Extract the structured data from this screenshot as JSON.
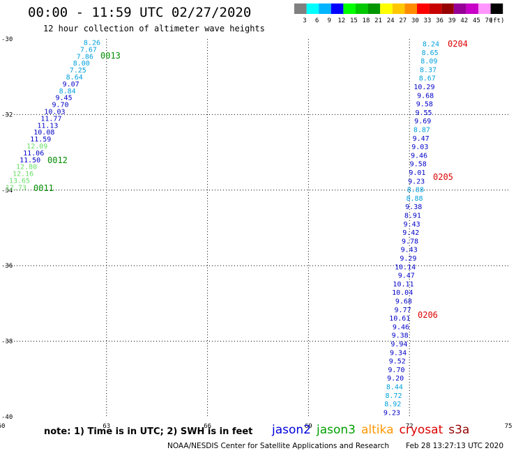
{
  "header": {
    "title": "00:00 - 11:59 UTC 02/27/2020",
    "subtitle": "12 hour collection of altimeter wave heights"
  },
  "colorbar": {
    "colors": [
      "#808080",
      "#00ffff",
      "#00b4ff",
      "#0000ff",
      "#00ff00",
      "#00c800",
      "#009600",
      "#ffff00",
      "#ffc800",
      "#ff8c00",
      "#ff0000",
      "#c80000",
      "#960000",
      "#960096",
      "#c800c8",
      "#ff96ff",
      "#000000"
    ],
    "labels": [
      "3",
      "6",
      "9",
      "12",
      "15",
      "18",
      "21",
      "24",
      "27",
      "30",
      "33",
      "36",
      "39",
      "42",
      "45",
      "70",
      "(ft)"
    ]
  },
  "map": {
    "lon_range": [
      60,
      75
    ],
    "lat_range": [
      -40,
      -30
    ],
    "x_ticks": [
      "60",
      "63",
      "66",
      "69",
      "72",
      "75"
    ],
    "y_ticks": [
      "-30",
      "-32",
      "-34",
      "-36",
      "-38",
      "-40"
    ]
  },
  "tracks": [
    {
      "satellite": "jason3",
      "points": [
        {
          "v": "8.26",
          "c": "#00a0dc"
        },
        {
          "v": "7.67",
          "c": "#00a0dc"
        },
        {
          "v": "7.86",
          "c": "#00a0dc"
        },
        {
          "v": "8.00",
          "c": "#00a0dc"
        },
        {
          "v": "7.25",
          "c": "#00a0dc"
        },
        {
          "v": "8.64",
          "c": "#00a0dc"
        },
        {
          "v": "9.07",
          "c": "#0000c8"
        },
        {
          "v": "8.84",
          "c": "#00a0dc"
        },
        {
          "v": "9.45",
          "c": "#0000c8"
        },
        {
          "v": "9.70",
          "c": "#0000c8"
        },
        {
          "v": "10.03",
          "c": "#0000c8"
        },
        {
          "v": "11.77",
          "c": "#0000c8"
        },
        {
          "v": "11.13",
          "c": "#0000c8"
        },
        {
          "v": "10.08",
          "c": "#0000c8"
        },
        {
          "v": "11.59",
          "c": "#0000c8"
        },
        {
          "v": "12.09",
          "c": "#66dd66"
        },
        {
          "v": "11.06",
          "c": "#0000c8"
        },
        {
          "v": "11.50",
          "c": "#0000c8"
        },
        {
          "v": "12.80",
          "c": "#66dd66"
        },
        {
          "v": "12.16",
          "c": "#66dd66"
        },
        {
          "v": "13.65",
          "c": "#66dd66"
        },
        {
          "v": "12.73",
          "c": "#66dd66"
        }
      ],
      "times": [
        {
          "t": "0013",
          "c": "#008c00"
        },
        {
          "t": "0012",
          "c": "#008c00"
        },
        {
          "t": "0011",
          "c": "#008c00"
        }
      ]
    },
    {
      "satellite": "s3a",
      "points": [
        {
          "v": "8.24",
          "c": "#00a0dc"
        },
        {
          "v": "8.65",
          "c": "#00a0dc"
        },
        {
          "v": "8.09",
          "c": "#00a0dc"
        },
        {
          "v": "8.37",
          "c": "#00a0dc"
        },
        {
          "v": "8.67",
          "c": "#00a0dc"
        },
        {
          "v": "10.29",
          "c": "#0000c8"
        },
        {
          "v": "9.68",
          "c": "#0000c8"
        },
        {
          "v": "9.58",
          "c": "#0000c8"
        },
        {
          "v": "9.55",
          "c": "#0000c8"
        },
        {
          "v": "9.69",
          "c": "#0000c8"
        },
        {
          "v": "8.87",
          "c": "#00a0dc"
        },
        {
          "v": "9.47",
          "c": "#0000c8"
        },
        {
          "v": "9.03",
          "c": "#0000c8"
        },
        {
          "v": "9.46",
          "c": "#0000c8"
        },
        {
          "v": "9.58",
          "c": "#0000c8"
        },
        {
          "v": "9.01",
          "c": "#0000c8"
        },
        {
          "v": "9.23",
          "c": "#0000c8"
        },
        {
          "v": "8.88",
          "c": "#00a0dc"
        },
        {
          "v": "8.88",
          "c": "#00a0dc"
        },
        {
          "v": "9.38",
          "c": "#0000c8"
        },
        {
          "v": "8.91",
          "c": "#0000c8"
        },
        {
          "v": "9.43",
          "c": "#0000c8"
        },
        {
          "v": "9.42",
          "c": "#0000c8"
        },
        {
          "v": "9.78",
          "c": "#0000c8"
        },
        {
          "v": "9.43",
          "c": "#0000c8"
        },
        {
          "v": "9.29",
          "c": "#0000c8"
        },
        {
          "v": "10.14",
          "c": "#0000c8"
        },
        {
          "v": "9.47",
          "c": "#0000c8"
        },
        {
          "v": "10.11",
          "c": "#0000c8"
        },
        {
          "v": "10.04",
          "c": "#0000c8"
        },
        {
          "v": "9.68",
          "c": "#0000c8"
        },
        {
          "v": "9.77",
          "c": "#0000c8"
        },
        {
          "v": "10.61",
          "c": "#0000c8"
        },
        {
          "v": "9.46",
          "c": "#0000c8"
        },
        {
          "v": "9.38",
          "c": "#0000c8"
        },
        {
          "v": "9.94",
          "c": "#0000c8"
        },
        {
          "v": "9.34",
          "c": "#0000c8"
        },
        {
          "v": "9.52",
          "c": "#0000c8"
        },
        {
          "v": "9.70",
          "c": "#0000c8"
        },
        {
          "v": "9.20",
          "c": "#0000c8"
        },
        {
          "v": "8.44",
          "c": "#00a0dc"
        },
        {
          "v": "8.72",
          "c": "#00a0dc"
        },
        {
          "v": "8.92",
          "c": "#00a0dc"
        },
        {
          "v": "9.23",
          "c": "#0000c8"
        }
      ],
      "times": [
        {
          "t": "0204",
          "c": "#dc0000"
        },
        {
          "t": "0205",
          "c": "#dc0000"
        },
        {
          "t": "0206",
          "c": "#dc0000"
        }
      ]
    }
  ],
  "footer": {
    "note": "note: 1) Time is in UTC; 2) SWH is in feet",
    "satellites": [
      {
        "name": "jason2",
        "color": "#0000dc"
      },
      {
        "name": "jason3",
        "color": "#00a000"
      },
      {
        "name": "altika",
        "color": "#ff9600"
      },
      {
        "name": "cryosat",
        "color": "#dc0000"
      },
      {
        "name": "s3a",
        "color": "#960000"
      }
    ],
    "credit": "NOAA/NESDIS Center for Satellite Applications and Research",
    "timestamp": "Feb 28 13:27:13 UTC 2020"
  }
}
